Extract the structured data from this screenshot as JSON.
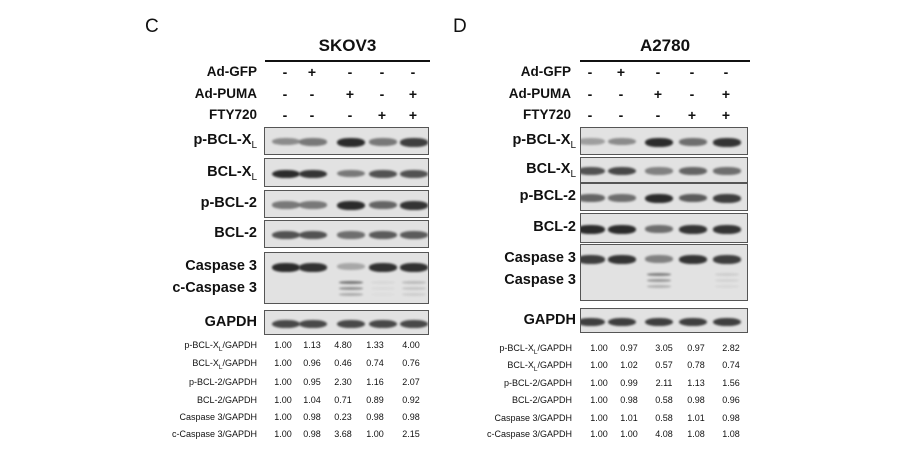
{
  "panels": [
    {
      "letter": "C",
      "cell_line": "SKOV3",
      "conditions": [
        {
          "label": "Ad-GFP",
          "signs": [
            "-",
            "+",
            "-",
            "-",
            "-"
          ]
        },
        {
          "label": "Ad-PUMA",
          "signs": [
            "-",
            "-",
            "+",
            "-",
            "+"
          ]
        },
        {
          "label": "FTY720",
          "signs": [
            "-",
            "-",
            "-",
            "+",
            "+"
          ]
        }
      ],
      "blots": [
        {
          "base": "p-BCL-X",
          "sub": "L",
          "band_intensity": [
            0.45,
            0.55,
            0.95,
            0.55,
            0.85
          ]
        },
        {
          "base": "BCL-X",
          "sub": "L",
          "band_intensity": [
            0.95,
            0.9,
            0.55,
            0.75,
            0.75
          ]
        },
        {
          "base": "p-BCL-2",
          "sub": "",
          "band_intensity": [
            0.55,
            0.55,
            0.95,
            0.65,
            0.9
          ]
        },
        {
          "base": "BCL-2",
          "sub": "",
          "band_intensity": [
            0.75,
            0.75,
            0.6,
            0.7,
            0.7
          ]
        },
        {
          "base": "Caspase 3",
          "sub": "",
          "band_intensity": [
            0.95,
            0.92,
            0.3,
            0.92,
            0.92
          ],
          "second_label": "c-Caspase 3",
          "cleaved_intensity": [
            0.0,
            0.0,
            0.55,
            0.05,
            0.2
          ]
        },
        {
          "base": "GAPDH",
          "sub": "",
          "band_intensity": [
            0.8,
            0.8,
            0.8,
            0.8,
            0.8
          ]
        }
      ],
      "quant": [
        {
          "base": "p-BCL-X",
          "sub": "L",
          "tail": "/GAPDH",
          "values": [
            "1.00",
            "1.13",
            "4.80",
            "1.33",
            "4.00"
          ]
        },
        {
          "base": "BCL-X",
          "sub": "L",
          "tail": "/GAPDH",
          "values": [
            "1.00",
            "0.96",
            "0.46",
            "0.74",
            "0.76"
          ]
        },
        {
          "base": "p-BCL-2/GAPDH",
          "sub": "",
          "tail": "",
          "values": [
            "1.00",
            "0.95",
            "2.30",
            "1.16",
            "2.07"
          ]
        },
        {
          "base": "BCL-2/GAPDH",
          "sub": "",
          "tail": "",
          "values": [
            "1.00",
            "1.04",
            "0.71",
            "0.89",
            "0.92"
          ]
        },
        {
          "base": "Caspase 3/GAPDH",
          "sub": "",
          "tail": "",
          "values": [
            "1.00",
            "0.98",
            "0.23",
            "0.98",
            "0.98"
          ]
        },
        {
          "base": "c-Caspase 3/GAPDH",
          "sub": "",
          "tail": "",
          "values": [
            "1.00",
            "0.98",
            "3.68",
            "1.00",
            "2.15"
          ]
        }
      ]
    },
    {
      "letter": "D",
      "cell_line": "A2780",
      "conditions": [
        {
          "label": "Ad-GFP",
          "signs": [
            "-",
            "+",
            "-",
            "-",
            "-"
          ]
        },
        {
          "label": "Ad-PUMA",
          "signs": [
            "-",
            "-",
            "+",
            "-",
            "+"
          ]
        },
        {
          "label": "FTY720",
          "signs": [
            "-",
            "-",
            "-",
            "+",
            "+"
          ]
        }
      ],
      "blots": [
        {
          "base": "p-BCL-X",
          "sub": "L",
          "band_intensity": [
            0.35,
            0.45,
            0.95,
            0.6,
            0.9
          ]
        },
        {
          "base": "BCL-X",
          "sub": "L",
          "band_intensity": [
            0.75,
            0.8,
            0.5,
            0.65,
            0.6
          ]
        },
        {
          "base": "p-BCL-2",
          "sub": "",
          "band_intensity": [
            0.65,
            0.6,
            0.95,
            0.7,
            0.85
          ]
        },
        {
          "base": "BCL-2",
          "sub": "",
          "band_intensity": [
            0.95,
            0.95,
            0.6,
            0.9,
            0.9
          ]
        },
        {
          "base": "Caspase 3",
          "sub": "",
          "band_intensity": [
            0.85,
            0.9,
            0.5,
            0.9,
            0.85
          ],
          "second_label": "Caspase 3",
          "cleaved_intensity": [
            0.0,
            0.0,
            0.5,
            0.0,
            0.1
          ]
        },
        {
          "base": "GAPDH",
          "sub": "",
          "band_intensity": [
            0.85,
            0.85,
            0.85,
            0.85,
            0.85
          ]
        }
      ],
      "quant": [
        {
          "base": "p-BCL-X",
          "sub": "L",
          "tail": "/GAPDH",
          "values": [
            "1.00",
            "0.97",
            "3.05",
            "0.97",
            "2.82"
          ]
        },
        {
          "base": "BCL-X",
          "sub": "L",
          "tail": "/GAPDH",
          "values": [
            "1.00",
            "1.02",
            "0.57",
            "0.78",
            "0.74"
          ]
        },
        {
          "base": "p-BCL-2/GAPDH",
          "sub": "",
          "tail": "",
          "values": [
            "1.00",
            "0.99",
            "2.11",
            "1.13",
            "1.56"
          ]
        },
        {
          "base": "BCL-2/GAPDH",
          "sub": "",
          "tail": "",
          "values": [
            "1.00",
            "0.98",
            "0.58",
            "0.98",
            "0.96"
          ]
        },
        {
          "base": "Caspase 3/GAPDH",
          "sub": "",
          "tail": "",
          "values": [
            "1.00",
            "1.01",
            "0.58",
            "1.01",
            "0.98"
          ]
        },
        {
          "base": "c-Caspase 3/GAPDH",
          "sub": "",
          "tail": "",
          "values": [
            "1.00",
            "1.00",
            "4.08",
            "1.08",
            "1.08"
          ]
        }
      ]
    }
  ]
}
